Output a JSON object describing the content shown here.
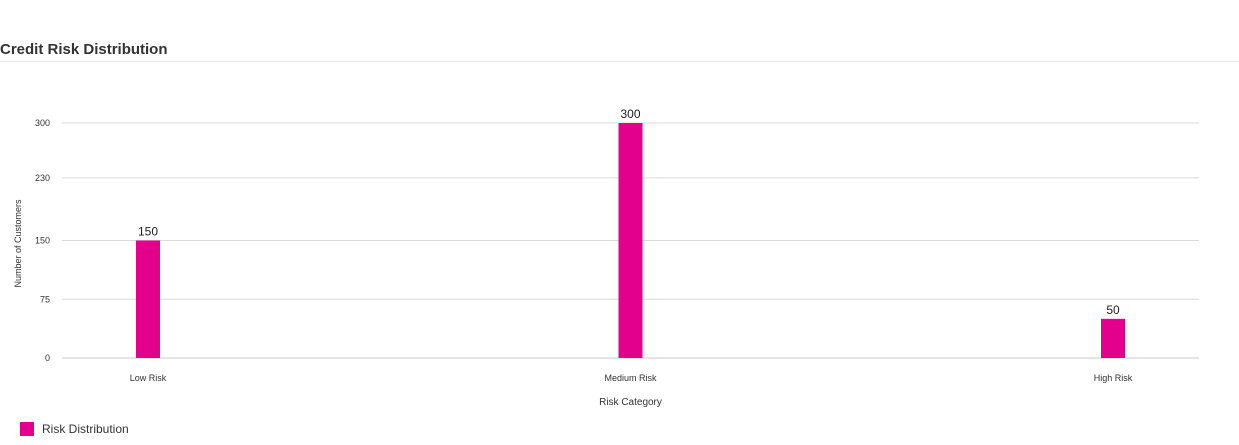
{
  "page": {
    "title": "Credit Risk Distribution"
  },
  "chart_data": {
    "type": "bar",
    "categories": [
      "Low Risk",
      "Medium Risk",
      "High Risk"
    ],
    "series": [
      {
        "name": "Risk Distribution",
        "values": [
          150,
          300,
          50
        ]
      }
    ],
    "xlabel": "Risk Category",
    "ylabel": "Number of Customers",
    "ylim": [
      0,
      300
    ],
    "yticks": [
      0,
      75,
      150,
      230,
      300
    ],
    "data_labels": true,
    "grid": true,
    "legend": "bottom-left"
  },
  "colors": {
    "bar": "#e3008c",
    "grid": "#d9d9d9",
    "axis": "#c8c8c8"
  }
}
